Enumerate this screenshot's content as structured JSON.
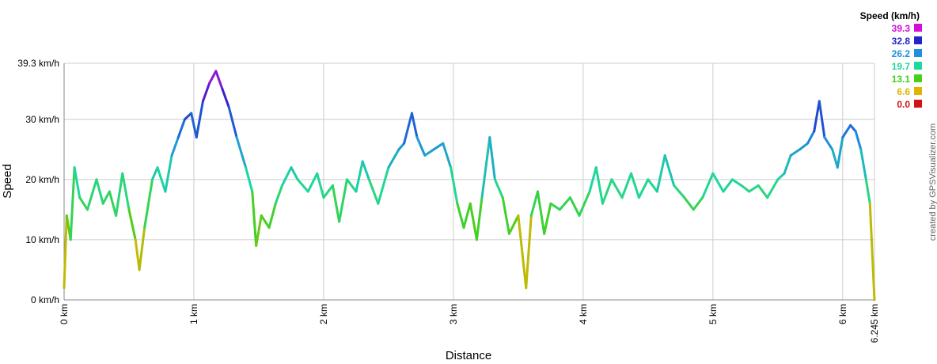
{
  "chart_data": {
    "type": "line",
    "x_label": "Distance",
    "y_label": "Speed",
    "credit": "created by GPSVisualizer.com",
    "xlim": [
      0,
      6.245
    ],
    "ylim": [
      0,
      39.3
    ],
    "xticks": [
      {
        "value": 0,
        "label": "0 km"
      },
      {
        "value": 1,
        "label": "1 km"
      },
      {
        "value": 2,
        "label": "2 km"
      },
      {
        "value": 3,
        "label": "3 km"
      },
      {
        "value": 4,
        "label": "4 km"
      },
      {
        "value": 5,
        "label": "5 km"
      },
      {
        "value": 6,
        "label": "6 km"
      },
      {
        "value": 6.245,
        "label": "6.245 km"
      }
    ],
    "yticks": [
      {
        "value": 0,
        "label": "0 km/h"
      },
      {
        "value": 10,
        "label": "10 km/h"
      },
      {
        "value": 20,
        "label": "20 km/h"
      },
      {
        "value": 30,
        "label": "30 km/h"
      },
      {
        "value": 39.3,
        "label": "39.3 km/h"
      }
    ],
    "grid": true,
    "color_scale": {
      "title": "Speed (km/h)",
      "values": [
        39.3,
        32.8,
        26.2,
        19.7,
        13.1,
        6.6,
        {
          "value": 0,
          "label": "0.0"
        }
      ],
      "colors": [
        "#d010d8",
        "#2424c8",
        "#1e90dc",
        "#1ed8a0",
        "#44d01c",
        "#e0b400",
        "#d01414"
      ]
    },
    "x": [
      0,
      0.02,
      0.05,
      0.08,
      0.12,
      0.18,
      0.25,
      0.3,
      0.35,
      0.4,
      0.45,
      0.5,
      0.55,
      0.58,
      0.62,
      0.68,
      0.72,
      0.78,
      0.83,
      0.88,
      0.93,
      0.98,
      1.02,
      1.07,
      1.12,
      1.17,
      1.22,
      1.27,
      1.33,
      1.4,
      1.45,
      1.48,
      1.52,
      1.58,
      1.63,
      1.68,
      1.75,
      1.8,
      1.88,
      1.95,
      2,
      2.07,
      2.12,
      2.18,
      2.25,
      2.3,
      2.35,
      2.42,
      2.5,
      2.58,
      2.62,
      2.68,
      2.72,
      2.78,
      2.85,
      2.92,
      2.98,
      3.03,
      3.08,
      3.13,
      3.18,
      3.22,
      3.28,
      3.32,
      3.38,
      3.43,
      3.5,
      3.56,
      3.6,
      3.65,
      3.7,
      3.75,
      3.82,
      3.9,
      3.97,
      4.05,
      4.1,
      4.15,
      4.22,
      4.3,
      4.37,
      4.43,
      4.5,
      4.57,
      4.63,
      4.7,
      4.78,
      4.85,
      4.92,
      5,
      5.08,
      5.15,
      5.22,
      5.28,
      5.35,
      5.42,
      5.5,
      5.55,
      5.6,
      5.67,
      5.73,
      5.78,
      5.82,
      5.86,
      5.92,
      5.96,
      6,
      6.06,
      6.1,
      6.14,
      6.18,
      6.21,
      6.245
    ],
    "values": [
      2,
      14,
      10,
      22,
      17,
      15,
      20,
      16,
      18,
      14,
      21,
      15,
      10,
      5,
      12,
      20,
      22,
      18,
      24,
      27,
      30,
      31,
      27,
      33,
      36,
      38,
      35,
      32,
      27,
      22,
      18,
      9,
      14,
      12,
      16,
      19,
      22,
      20,
      18,
      21,
      17,
      19,
      13,
      20,
      18,
      23,
      20,
      16,
      22,
      25,
      26,
      31,
      27,
      24,
      25,
      26,
      22,
      16,
      12,
      16,
      10,
      17,
      27,
      20,
      17,
      11,
      14,
      2,
      14,
      18,
      11,
      16,
      15,
      17,
      14,
      18,
      22,
      16,
      20,
      17,
      21,
      17,
      20,
      18,
      24,
      19,
      17,
      15,
      17,
      21,
      18,
      20,
      19,
      18,
      19,
      17,
      20,
      21,
      24,
      25,
      26,
      28,
      33,
      27,
      25,
      22,
      27,
      29,
      28,
      25,
      20,
      16,
      0
    ]
  }
}
